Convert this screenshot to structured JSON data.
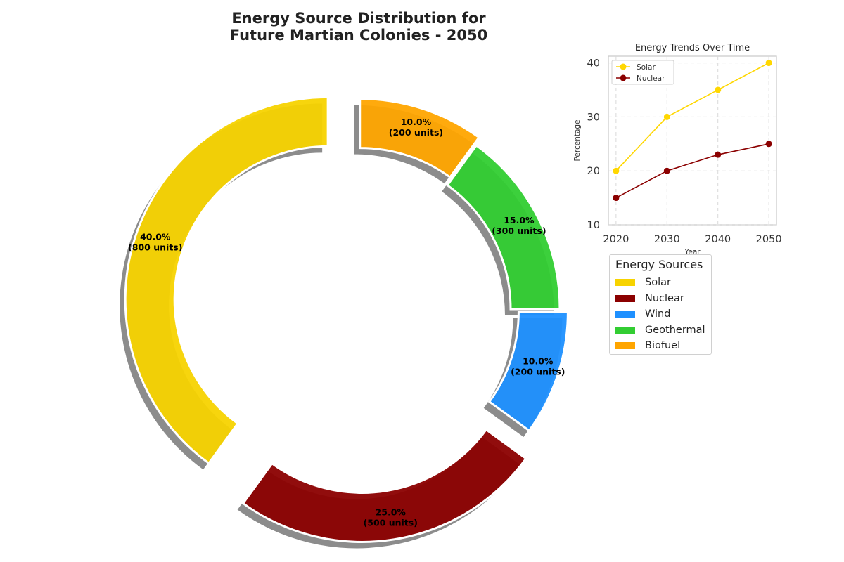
{
  "chart_data": [
    {
      "type": "pie",
      "title": "Energy Source Distribution for\nFuture Martian Colonies - 2050",
      "categories": [
        "Solar",
        "Nuclear",
        "Wind",
        "Geothermal",
        "Biofuel"
      ],
      "values": [
        800,
        500,
        200,
        300,
        200
      ],
      "percent_labels": [
        "40.0%",
        "25.0%",
        "10.0%",
        "15.0%",
        "10.0%"
      ],
      "unit_labels": [
        "(800 units)",
        "(500 units)",
        "(200 units)",
        "(300 units)",
        "(200 units)"
      ],
      "colors": [
        "#f7d300",
        "#8b0000",
        "#1e90ff",
        "#32cd32",
        "#ffa500"
      ],
      "donut": true,
      "shadow": true,
      "legend": {
        "title": "Energy Sources",
        "position": "right",
        "entries": [
          "Solar",
          "Nuclear",
          "Wind",
          "Geothermal",
          "Biofuel"
        ]
      }
    },
    {
      "type": "line",
      "title": "Energy Trends Over Time",
      "xlabel": "Year",
      "ylabel": "Percentage",
      "x": [
        2020,
        2030,
        2040,
        2050
      ],
      "series": [
        {
          "name": "Solar",
          "values": [
            20,
            30,
            35,
            40
          ],
          "color": "#ffd700"
        },
        {
          "name": "Nuclear",
          "values": [
            15,
            20,
            23,
            25
          ],
          "color": "#8b0000"
        }
      ],
      "ylim": [
        10,
        41.25
      ],
      "xlim": [
        2018.5,
        2051.5
      ],
      "yticks": [
        10,
        20,
        30,
        40
      ],
      "xticks": [
        2020,
        2030,
        2040,
        2050
      ],
      "grid": true,
      "legend_position": "top-left"
    }
  ]
}
